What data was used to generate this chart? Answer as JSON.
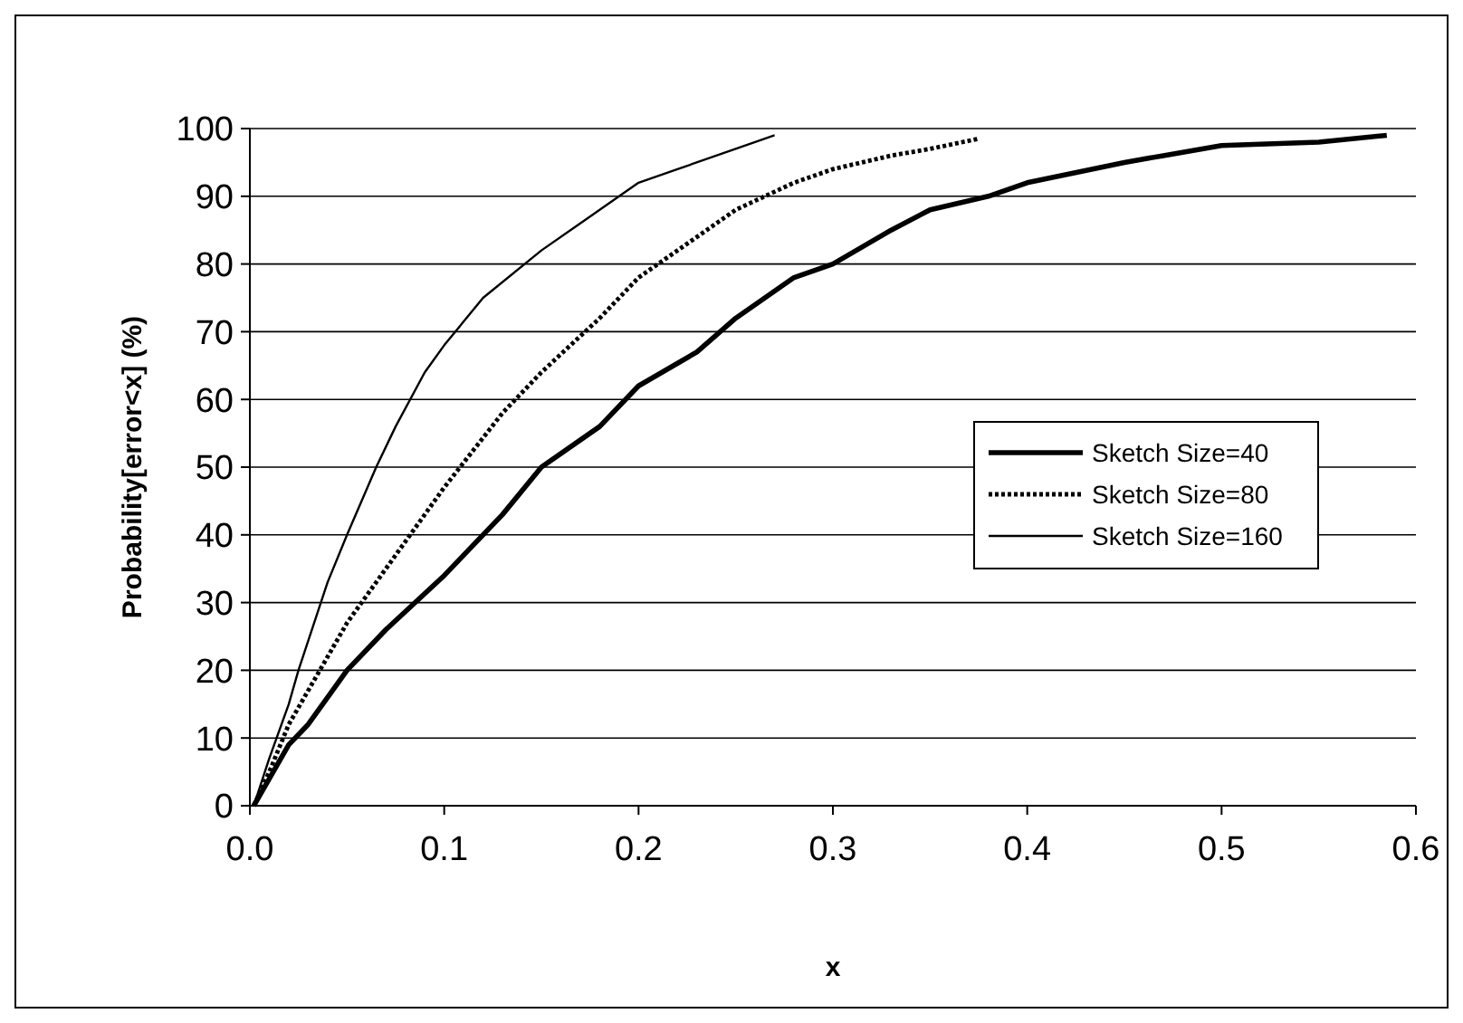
{
  "chart_data": {
    "type": "line",
    "xlabel": "x",
    "ylabel": "Probability[error<x] (%)",
    "xlim": [
      0,
      0.6
    ],
    "ylim": [
      0,
      100
    ],
    "xticks": [
      {
        "value": 0,
        "label": "0.0"
      },
      0.1,
      0.2,
      0.3,
      0.4,
      0.5,
      0.6
    ],
    "yticks": [
      0,
      10,
      20,
      30,
      40,
      50,
      60,
      70,
      80,
      90,
      100
    ],
    "grid": "y",
    "legend": "right",
    "marker": "none",
    "series": [
      {
        "name": "Sketch Size=40",
        "color": "#000000",
        "line_style": "solid",
        "x": [
          0.002,
          0.01,
          0.02,
          0.03,
          0.05,
          0.07,
          0.1,
          0.13,
          0.15,
          0.18,
          0.2,
          0.23,
          0.25,
          0.28,
          0.3,
          0.33,
          0.35,
          0.38,
          0.4,
          0.45,
          0.47,
          0.5,
          0.55,
          0.585
        ],
        "values": [
          0,
          4,
          9,
          12,
          20,
          26,
          34,
          43,
          50,
          56,
          62,
          67,
          72,
          78,
          80,
          85,
          88,
          90,
          92,
          95,
          96,
          97.5,
          98,
          99
        ]
      },
      {
        "name": "Sketch Size=80",
        "color": "#000000",
        "line_style": "dotted",
        "x": [
          0.002,
          0.01,
          0.02,
          0.03,
          0.05,
          0.07,
          0.1,
          0.13,
          0.15,
          0.18,
          0.2,
          0.23,
          0.25,
          0.28,
          0.3,
          0.33,
          0.35,
          0.375
        ],
        "values": [
          0,
          5,
          12,
          17,
          27,
          35,
          47,
          58,
          64,
          72,
          78,
          84,
          88,
          92,
          94,
          96,
          97,
          98.5
        ]
      },
      {
        "name": "Sketch Size=160",
        "color": "#000000",
        "line_style": "solid",
        "x": [
          0.002,
          0.01,
          0.02,
          0.025,
          0.04,
          0.05,
          0.065,
          0.075,
          0.09,
          0.1,
          0.12,
          0.15,
          0.17,
          0.2,
          0.22,
          0.25,
          0.27
        ],
        "values": [
          0,
          7,
          15,
          20,
          33,
          40,
          50,
          56,
          64,
          68,
          75,
          82,
          86,
          92,
          94,
          97,
          99
        ]
      }
    ]
  }
}
